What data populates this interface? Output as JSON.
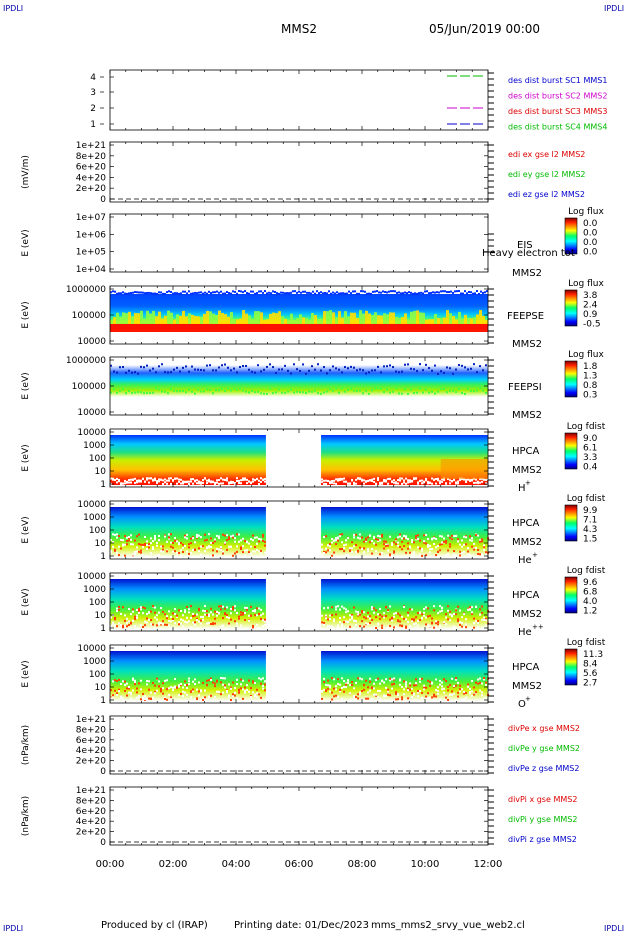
{
  "header": {
    "corner_left": "IPDLI",
    "corner_right": "IPDLI",
    "mission": "MMS2",
    "datetime": "05/Jun/2019 00:00"
  },
  "footer": {
    "produced": "Produced by cl (IRAP)",
    "printing": "Printing date: 01/Dec/2023",
    "file": "mms_mms2_srvy_vue_web2.cl",
    "corner_left": "IPDLI",
    "corner_right": "IPDLI"
  },
  "colors": {
    "red": "#dd0000",
    "magenta": "#cc00cc",
    "green": "#00bb00",
    "blue": "#0000cc"
  },
  "chart_data": [
    {
      "type": "line",
      "name": "burst-panel",
      "yticks": [
        "4",
        "3",
        "2",
        "1"
      ],
      "legend": [
        {
          "text": "des dist burst SC1 MMS1",
          "color": "#0000cc"
        },
        {
          "text": "des dist burst SC2 MMS2",
          "color": "#cc00cc"
        },
        {
          "text": "des dist burst SC3 MMS3",
          "color": "#dd0000"
        },
        {
          "text": "des dist burst SC4 MMS4",
          "color": "#00bb00"
        }
      ]
    },
    {
      "type": "line",
      "name": "edi-panel",
      "ylabel": "(mV/m)",
      "yticks": [
        "1e+21",
        "8e+20",
        "6e+20",
        "4e+20",
        "2e+20",
        "0"
      ],
      "legend": [
        {
          "text": "edi ex gse l2 MMS2",
          "color": "#dd0000"
        },
        {
          "text": "edi ey gse l2 MMS2",
          "color": "#00bb00"
        },
        {
          "text": "edi ez gse l2 MMS2",
          "color": "#0000cc"
        }
      ]
    },
    {
      "type": "heatmap",
      "name": "eis-panel",
      "ylabel": "E (eV)",
      "yticks": [
        "1e+07",
        "1e+06",
        "1e+05",
        "1e+04"
      ],
      "labels": [
        "EIS",
        "Heavy electron tot",
        "MMS2"
      ],
      "cbar_title": "Log flux",
      "cbar_ticks": [
        "0.0",
        "0.0",
        "0.0",
        "0.0"
      ]
    },
    {
      "type": "heatmap",
      "name": "feepse-panel",
      "ylabel": "E (eV)",
      "yticks": [
        "1000000",
        "100000",
        "10000"
      ],
      "labels": [
        "FEEPSE",
        "MMS2"
      ],
      "cbar_title": "Log flux",
      "cbar_ticks": [
        "3.8",
        "2.4",
        "0.9",
        "-0.5"
      ]
    },
    {
      "type": "heatmap",
      "name": "feepsi-panel",
      "ylabel": "E (eV)",
      "yticks": [
        "1000000",
        "100000",
        "10000"
      ],
      "labels": [
        "FEEPSI",
        "MMS2"
      ],
      "cbar_title": "Log flux",
      "cbar_ticks": [
        "1.8",
        "1.3",
        "0.8",
        "0.3"
      ]
    },
    {
      "type": "heatmap",
      "name": "hpca-h-panel",
      "ylabel": "E (eV)",
      "yticks": [
        "10000",
        "1000",
        "100",
        "10",
        "1"
      ],
      "labels": [
        "HPCA",
        "MMS2"
      ],
      "species": "H",
      "species_sup": "+",
      "cbar_title": "Log fdist",
      "cbar_ticks": [
        "9.0",
        "6.1",
        "3.3",
        "0.4"
      ]
    },
    {
      "type": "heatmap",
      "name": "hpca-he-panel",
      "ylabel": "E (eV)",
      "yticks": [
        "10000",
        "1000",
        "100",
        "10",
        "1"
      ],
      "labels": [
        "HPCA",
        "MMS2"
      ],
      "species": "He",
      "species_sup": "+",
      "cbar_title": "Log fdist",
      "cbar_ticks": [
        "9.9",
        "7.1",
        "4.3",
        "1.5"
      ]
    },
    {
      "type": "heatmap",
      "name": "hpca-hepp-panel",
      "ylabel": "E (eV)",
      "yticks": [
        "10000",
        "1000",
        "100",
        "10",
        "1"
      ],
      "labels": [
        "HPCA",
        "MMS2"
      ],
      "species": "He",
      "species_sup": "++",
      "cbar_title": "Log fdist",
      "cbar_ticks": [
        "9.6",
        "6.8",
        "4.0",
        "1.2"
      ]
    },
    {
      "type": "heatmap",
      "name": "hpca-o-panel",
      "ylabel": "E (eV)",
      "yticks": [
        "10000",
        "1000",
        "100",
        "10",
        "1"
      ],
      "labels": [
        "HPCA",
        "MMS2"
      ],
      "species": "O",
      "species_sup": "+",
      "cbar_title": "Log fdist",
      "cbar_ticks": [
        "11.3",
        "8.4",
        "5.6",
        "2.7"
      ]
    },
    {
      "type": "line",
      "name": "divpe-panel",
      "ylabel": "(nPa/km)",
      "yticks": [
        "1e+21",
        "8e+20",
        "6e+20",
        "4e+20",
        "2e+20",
        "0"
      ],
      "legend": [
        {
          "text": "divPe x gse MMS2",
          "color": "#dd0000"
        },
        {
          "text": "divPe y gse MMS2",
          "color": "#00bb00"
        },
        {
          "text": "divPe z gse MMS2",
          "color": "#0000cc"
        }
      ]
    },
    {
      "type": "line",
      "name": "divpi-panel",
      "ylabel": "(nPa/km)",
      "yticks": [
        "1e+21",
        "8e+20",
        "6e+20",
        "4e+20",
        "2e+20",
        "0"
      ],
      "legend": [
        {
          "text": "divPi x gse MMS2",
          "color": "#dd0000"
        },
        {
          "text": "divPi y gse MMS2",
          "color": "#00bb00"
        },
        {
          "text": "divPi z gse MMS2",
          "color": "#0000cc"
        }
      ]
    }
  ],
  "xaxis": {
    "ticks": [
      "00:00",
      "02:00",
      "04:00",
      "06:00",
      "08:00",
      "10:00",
      "12:00"
    ],
    "range_hours": [
      0,
      12
    ],
    "hpca_gap_hours": [
      4.95,
      6.7
    ]
  }
}
